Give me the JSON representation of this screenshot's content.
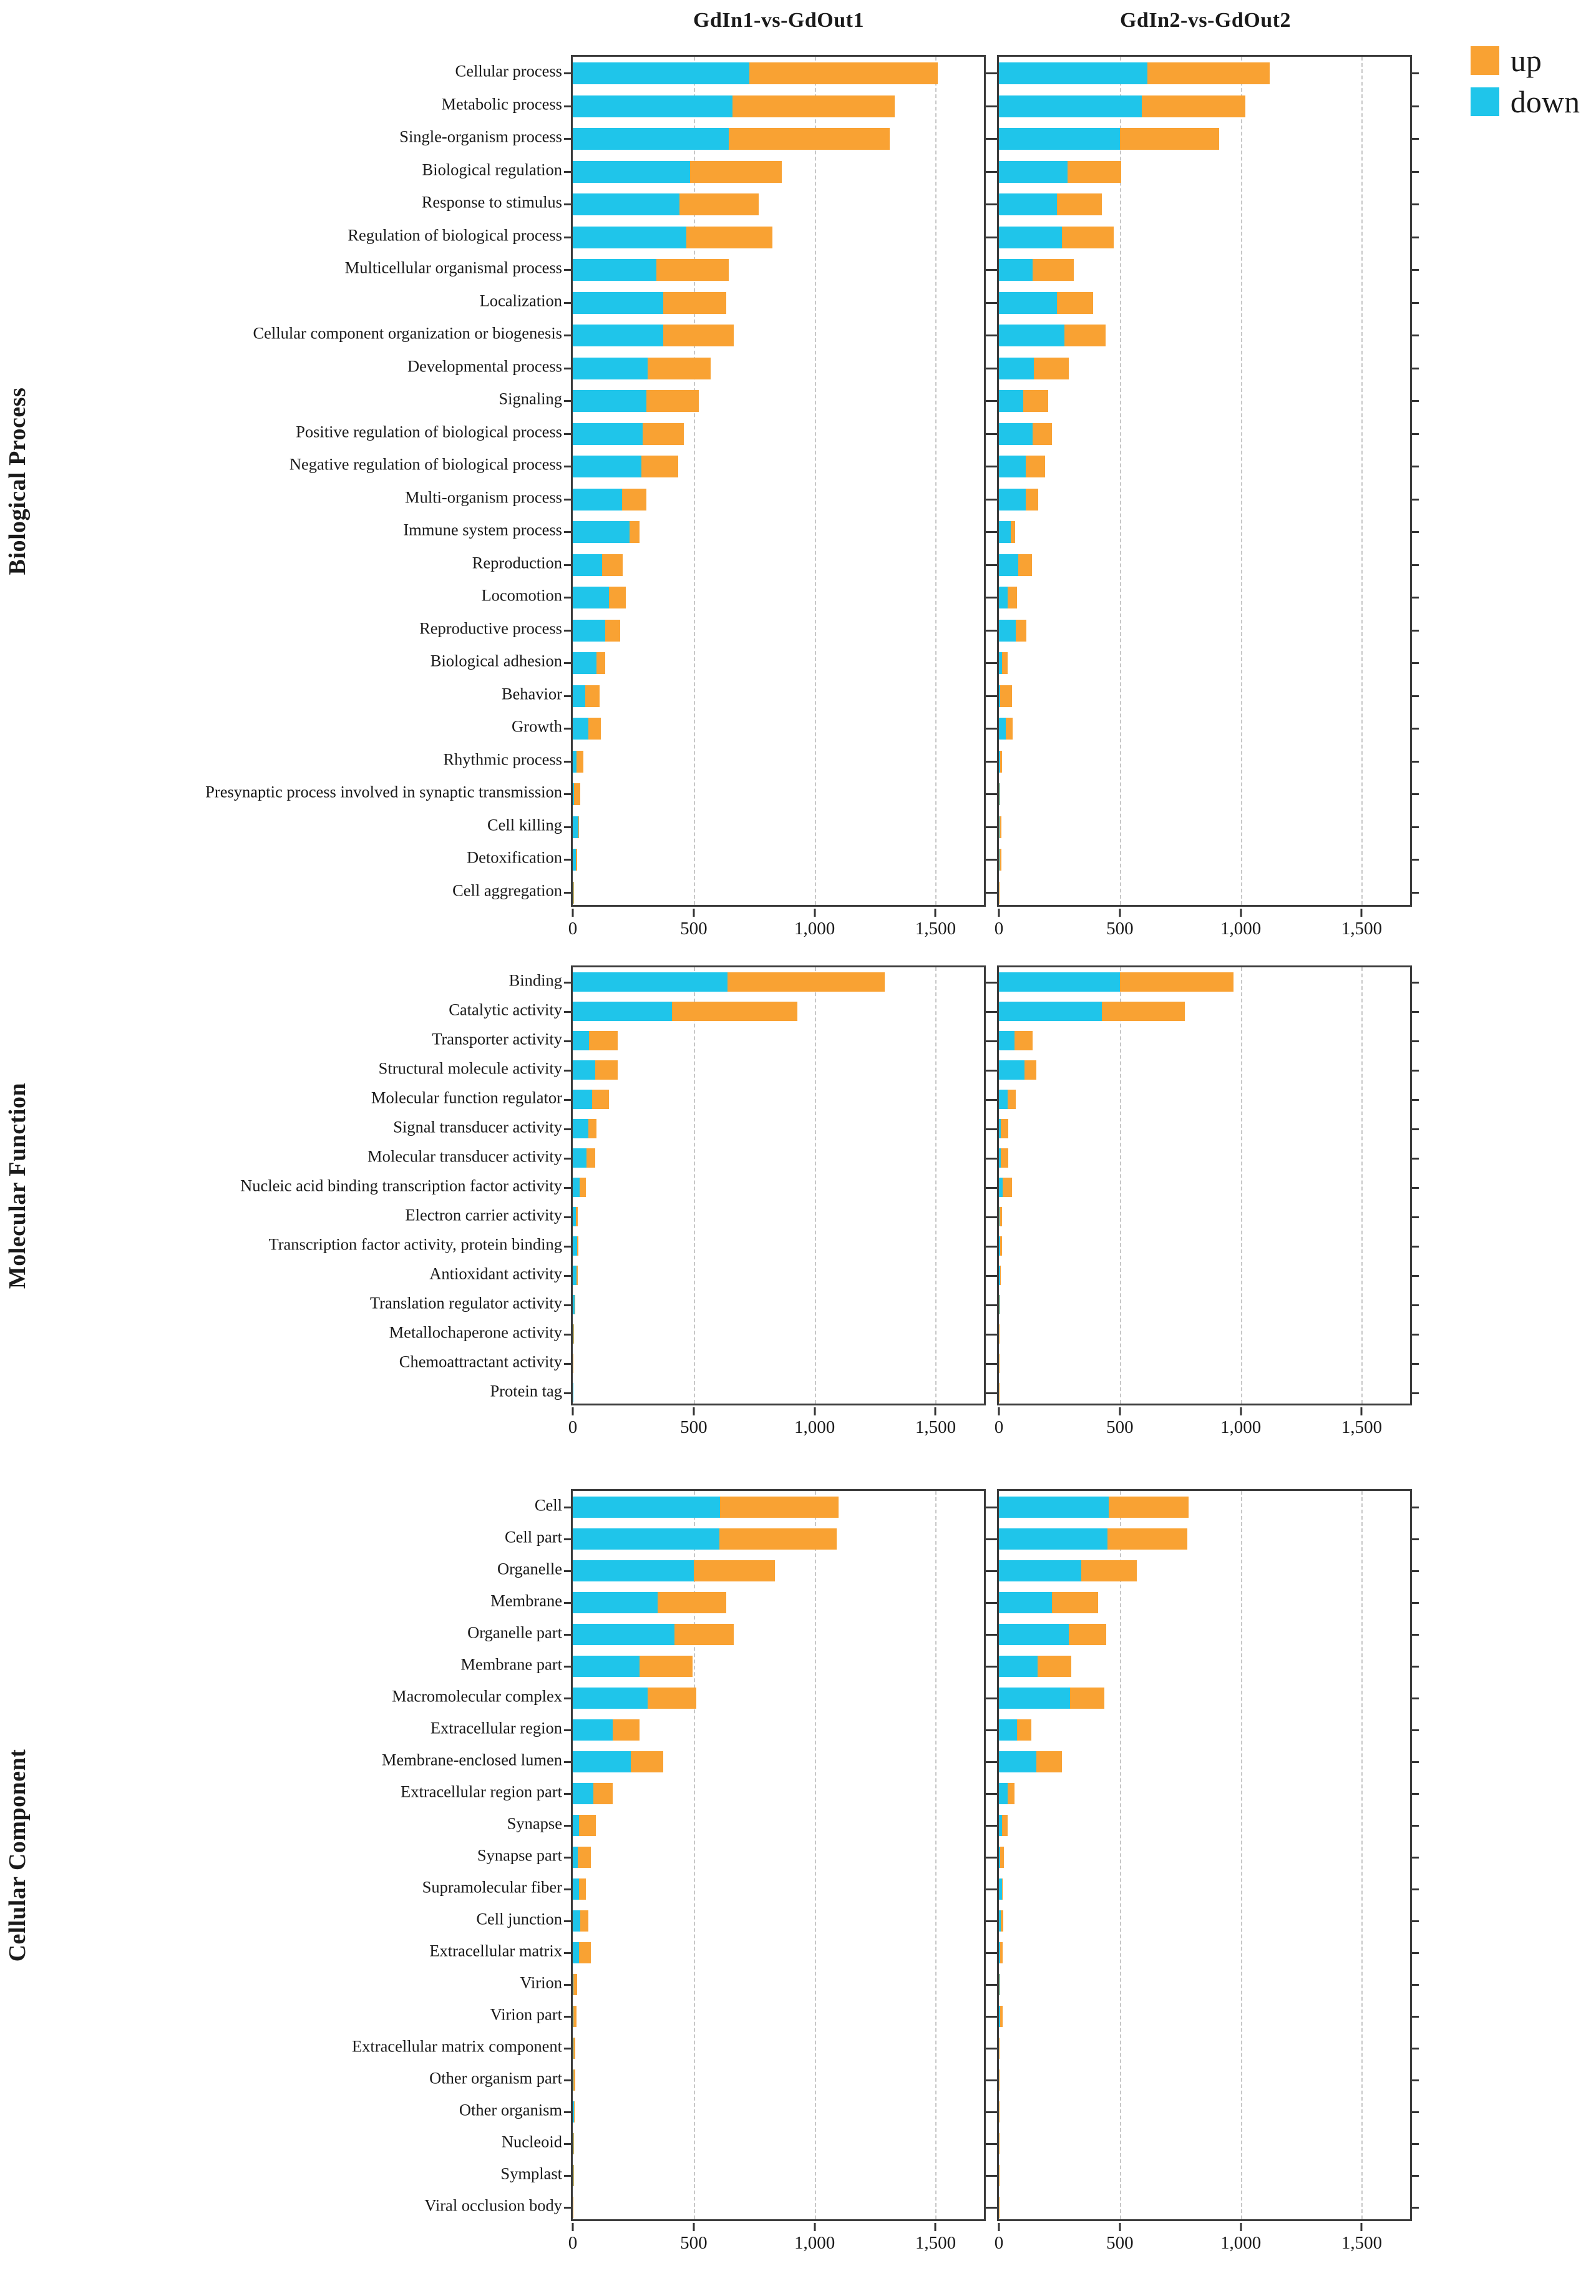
{
  "figure": {
    "column_titles": [
      "GdIn1-vs-GdOut1",
      "GdIn2-vs-GdOut2"
    ],
    "legend": {
      "up_label": "up",
      "down_label": "down"
    },
    "section_labels": [
      "Biological Process",
      "Molecular Function",
      "Cellular Component"
    ]
  },
  "colors": {
    "up": "#F9A233",
    "down": "#1FC5EA",
    "axis": "#3c3c3c",
    "grid": "#c7c7c7"
  },
  "axis": {
    "xlim": [
      0,
      1700
    ],
    "xticks": [
      0,
      500,
      1000,
      1500
    ],
    "xtick_labels": [
      "0",
      "500",
      "1,000",
      "1,500"
    ]
  },
  "chart_data": [
    {
      "type": "bar",
      "orientation": "horizontal",
      "stacked": true,
      "section": "Biological Process",
      "legend_entries": [
        "up",
        "down"
      ],
      "xlim": [
        0,
        1700
      ],
      "xticks": [
        0,
        500,
        1000,
        1500
      ],
      "categories": [
        "Cellular process",
        "Metabolic process",
        "Single-organism process",
        "Biological regulation",
        "Response to stimulus",
        "Regulation of biological process",
        "Multicellular organismal process",
        "Localization",
        "Cellular component organization or biogenesis",
        "Developmental process",
        "Signaling",
        "Positive regulation of biological process",
        "Negative regulation of biological process",
        "Multi-organism process",
        "Immune system process",
        "Reproduction",
        "Locomotion",
        "Reproductive process",
        "Biological adhesion",
        "Behavior",
        "Growth",
        "Rhythmic process",
        "Presynaptic process involved in synaptic transmission",
        "Cell killing",
        "Detoxification",
        "Cell aggregation"
      ],
      "panels": [
        {
          "title": "GdIn1-vs-GdOut1",
          "series": [
            {
              "name": "down",
              "values": [
                730,
                660,
                645,
                485,
                440,
                470,
                345,
                375,
                375,
                310,
                305,
                290,
                285,
                205,
                235,
                120,
                150,
                133,
                97,
                52,
                64,
                15,
                5,
                23,
                12,
                3
              ]
            },
            {
              "name": "up",
              "values": [
                780,
                670,
                665,
                380,
                330,
                355,
                300,
                260,
                290,
                260,
                215,
                170,
                150,
                100,
                40,
                87,
                70,
                63,
                36,
                58,
                51,
                30,
                25,
                3,
                6,
                2
              ]
            }
          ]
        },
        {
          "title": "GdIn2-vs-GdOut2",
          "series": [
            {
              "name": "down",
              "values": [
                615,
                590,
                500,
                285,
                240,
                260,
                140,
                240,
                270,
                145,
                100,
                140,
                110,
                110,
                49,
                81,
                35,
                69,
                12,
                5,
                29,
                5,
                2,
                3,
                2,
                1
              ]
            },
            {
              "name": "up",
              "values": [
                505,
                430,
                410,
                220,
                185,
                215,
                170,
                150,
                170,
                145,
                105,
                80,
                82,
                52,
                18,
                57,
                40,
                44,
                23,
                50,
                29,
                8,
                2,
                8,
                8,
                2
              ]
            }
          ]
        }
      ]
    },
    {
      "type": "bar",
      "orientation": "horizontal",
      "stacked": true,
      "section": "Molecular Function",
      "legend_entries": [
        "up",
        "down"
      ],
      "xlim": [
        0,
        1700
      ],
      "xticks": [
        0,
        500,
        1000,
        1500
      ],
      "categories": [
        "Binding",
        "Catalytic activity",
        "Transporter activity",
        "Structural molecule activity",
        "Molecular function regulator",
        "Signal transducer activity",
        "Molecular transducer activity",
        "Nucleic acid binding transcription factor activity",
        "Electron carrier activity",
        "Transcription factor activity, protein binding",
        "Antioxidant activity",
        "Translation regulator activity",
        "Metallochaperone activity",
        "Chemoattractant activity",
        "Protein tag"
      ],
      "panels": [
        {
          "title": "GdIn1-vs-GdOut1",
          "series": [
            {
              "name": "down",
              "values": [
                640,
                410,
                67,
                92,
                81,
                64,
                56,
                29,
                14,
                17,
                15,
                9,
                2,
                1,
                1
              ]
            },
            {
              "name": "up",
              "values": [
                650,
                520,
                120,
                93,
                69,
                34,
                36,
                26,
                7,
                6,
                6,
                2,
                1,
                1,
                0
              ]
            }
          ]
        },
        {
          "title": "GdIn2-vs-GdOut2",
          "series": [
            {
              "name": "down",
              "values": [
                500,
                425,
                64,
                105,
                35,
                8,
                8,
                15,
                3,
                5,
                5,
                2,
                1,
                1,
                0
              ]
            },
            {
              "name": "up",
              "values": [
                470,
                345,
                75,
                50,
                34,
                31,
                30,
                38,
                10,
                8,
                3,
                2,
                1,
                1,
                1
              ]
            }
          ]
        }
      ]
    },
    {
      "type": "bar",
      "orientation": "horizontal",
      "stacked": true,
      "section": "Cellular Component",
      "legend_entries": [
        "up",
        "down"
      ],
      "xlim": [
        0,
        1700
      ],
      "xticks": [
        0,
        500,
        1000,
        1500
      ],
      "categories": [
        "Cell",
        "Cell part",
        "Organelle",
        "Membrane",
        "Organelle part",
        "Membrane part",
        "Macromolecular complex",
        "Extracellular region",
        "Membrane-enclosed lumen",
        "Extracellular region part",
        "Synapse",
        "Synapse part",
        "Supramolecular fiber",
        "Cell junction",
        "Extracellular matrix",
        "Virion",
        "Virion part",
        "Extracellular matrix component",
        "Other organism part",
        "Other organism",
        "Nucleoid",
        "Symplast",
        "Viral occlusion body"
      ],
      "panels": [
        {
          "title": "GdIn1-vs-GdOut1",
          "series": [
            {
              "name": "down",
              "values": [
                610,
                605,
                500,
                350,
                420,
                275,
                310,
                165,
                240,
                85,
                25,
                20,
                25,
                30,
                25,
                3,
                3,
                2,
                2,
                6,
                2,
                2,
                1
              ]
            },
            {
              "name": "up",
              "values": [
                490,
                485,
                335,
                285,
                245,
                220,
                200,
                110,
                135,
                80,
                70,
                55,
                30,
                35,
                50,
                15,
                13,
                9,
                8,
                3,
                3,
                2,
                2
              ]
            }
          ]
        },
        {
          "title": "GdIn2-vs-GdOut2",
          "series": [
            {
              "name": "down",
              "values": [
                455,
                450,
                340,
                220,
                290,
                160,
                295,
                75,
                155,
                35,
                12,
                5,
                12,
                8,
                4,
                2,
                5,
                1,
                1,
                1,
                1,
                0,
                0
              ]
            },
            {
              "name": "up",
              "values": [
                330,
                330,
                230,
                190,
                155,
                140,
                140,
                58,
                105,
                29,
                23,
                15,
                3,
                10,
                12,
                3,
                10,
                2,
                2,
                1,
                1,
                1,
                1
              ]
            }
          ]
        }
      ]
    }
  ]
}
